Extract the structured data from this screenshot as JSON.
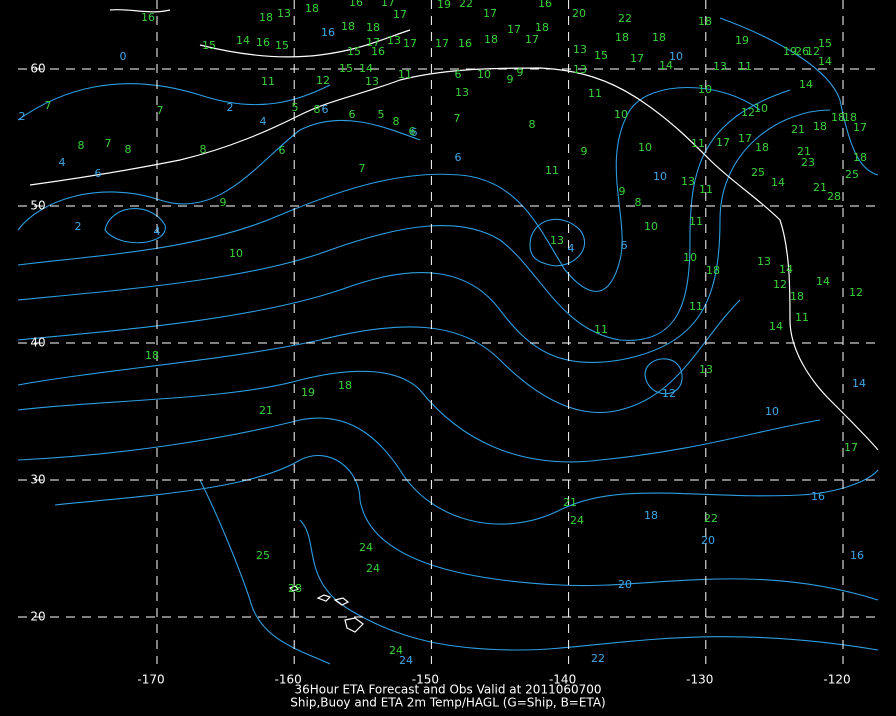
{
  "map": {
    "title_line1": "36Hour ETA Forecast and Obs Valid at 2011060700",
    "title_line2": "Ship,Buoy and ETA 2m Temp/HAGL (G=Ship, B=ETA)",
    "lon_ticks": [
      -170,
      -160,
      -150,
      -140,
      -130,
      -120
    ],
    "lat_ticks": [
      60,
      50,
      40,
      30,
      20
    ],
    "observations": [
      16,
      18,
      13,
      18,
      16,
      17,
      19,
      22,
      17,
      16,
      20,
      22,
      18,
      18,
      17,
      17,
      13,
      15,
      14,
      16,
      15,
      15,
      16,
      17,
      17,
      16,
      18,
      17,
      17,
      18,
      13,
      15,
      18,
      18,
      17,
      14,
      18,
      19,
      19,
      26,
      12,
      15,
      14,
      11,
      12,
      15,
      14,
      13,
      11,
      6,
      10,
      9,
      9,
      13,
      13,
      11,
      13,
      10,
      11,
      12,
      14,
      18,
      18,
      17,
      18,
      21,
      10,
      5,
      8,
      6,
      5,
      8,
      6,
      7,
      8,
      10,
      7,
      7,
      8,
      7,
      8,
      8,
      6,
      7,
      9,
      10,
      11,
      11,
      17,
      17,
      18,
      21,
      23,
      21,
      25,
      28,
      18,
      25,
      14,
      13,
      11,
      9,
      10,
      11,
      8,
      9,
      10,
      13,
      10,
      13,
      14,
      18,
      12,
      18,
      14,
      12,
      11,
      11,
      14,
      11,
      18,
      18,
      19,
      13,
      21,
      17,
      21,
      24,
      22,
      24,
      24,
      25,
      28,
      24
    ],
    "contour_labels": [
      0,
      2,
      2,
      4,
      4,
      6,
      2,
      4,
      6,
      6,
      6,
      4,
      6,
      10,
      10,
      16,
      20,
      18,
      16,
      16,
      20,
      22,
      24,
      10,
      12,
      14
    ]
  }
}
